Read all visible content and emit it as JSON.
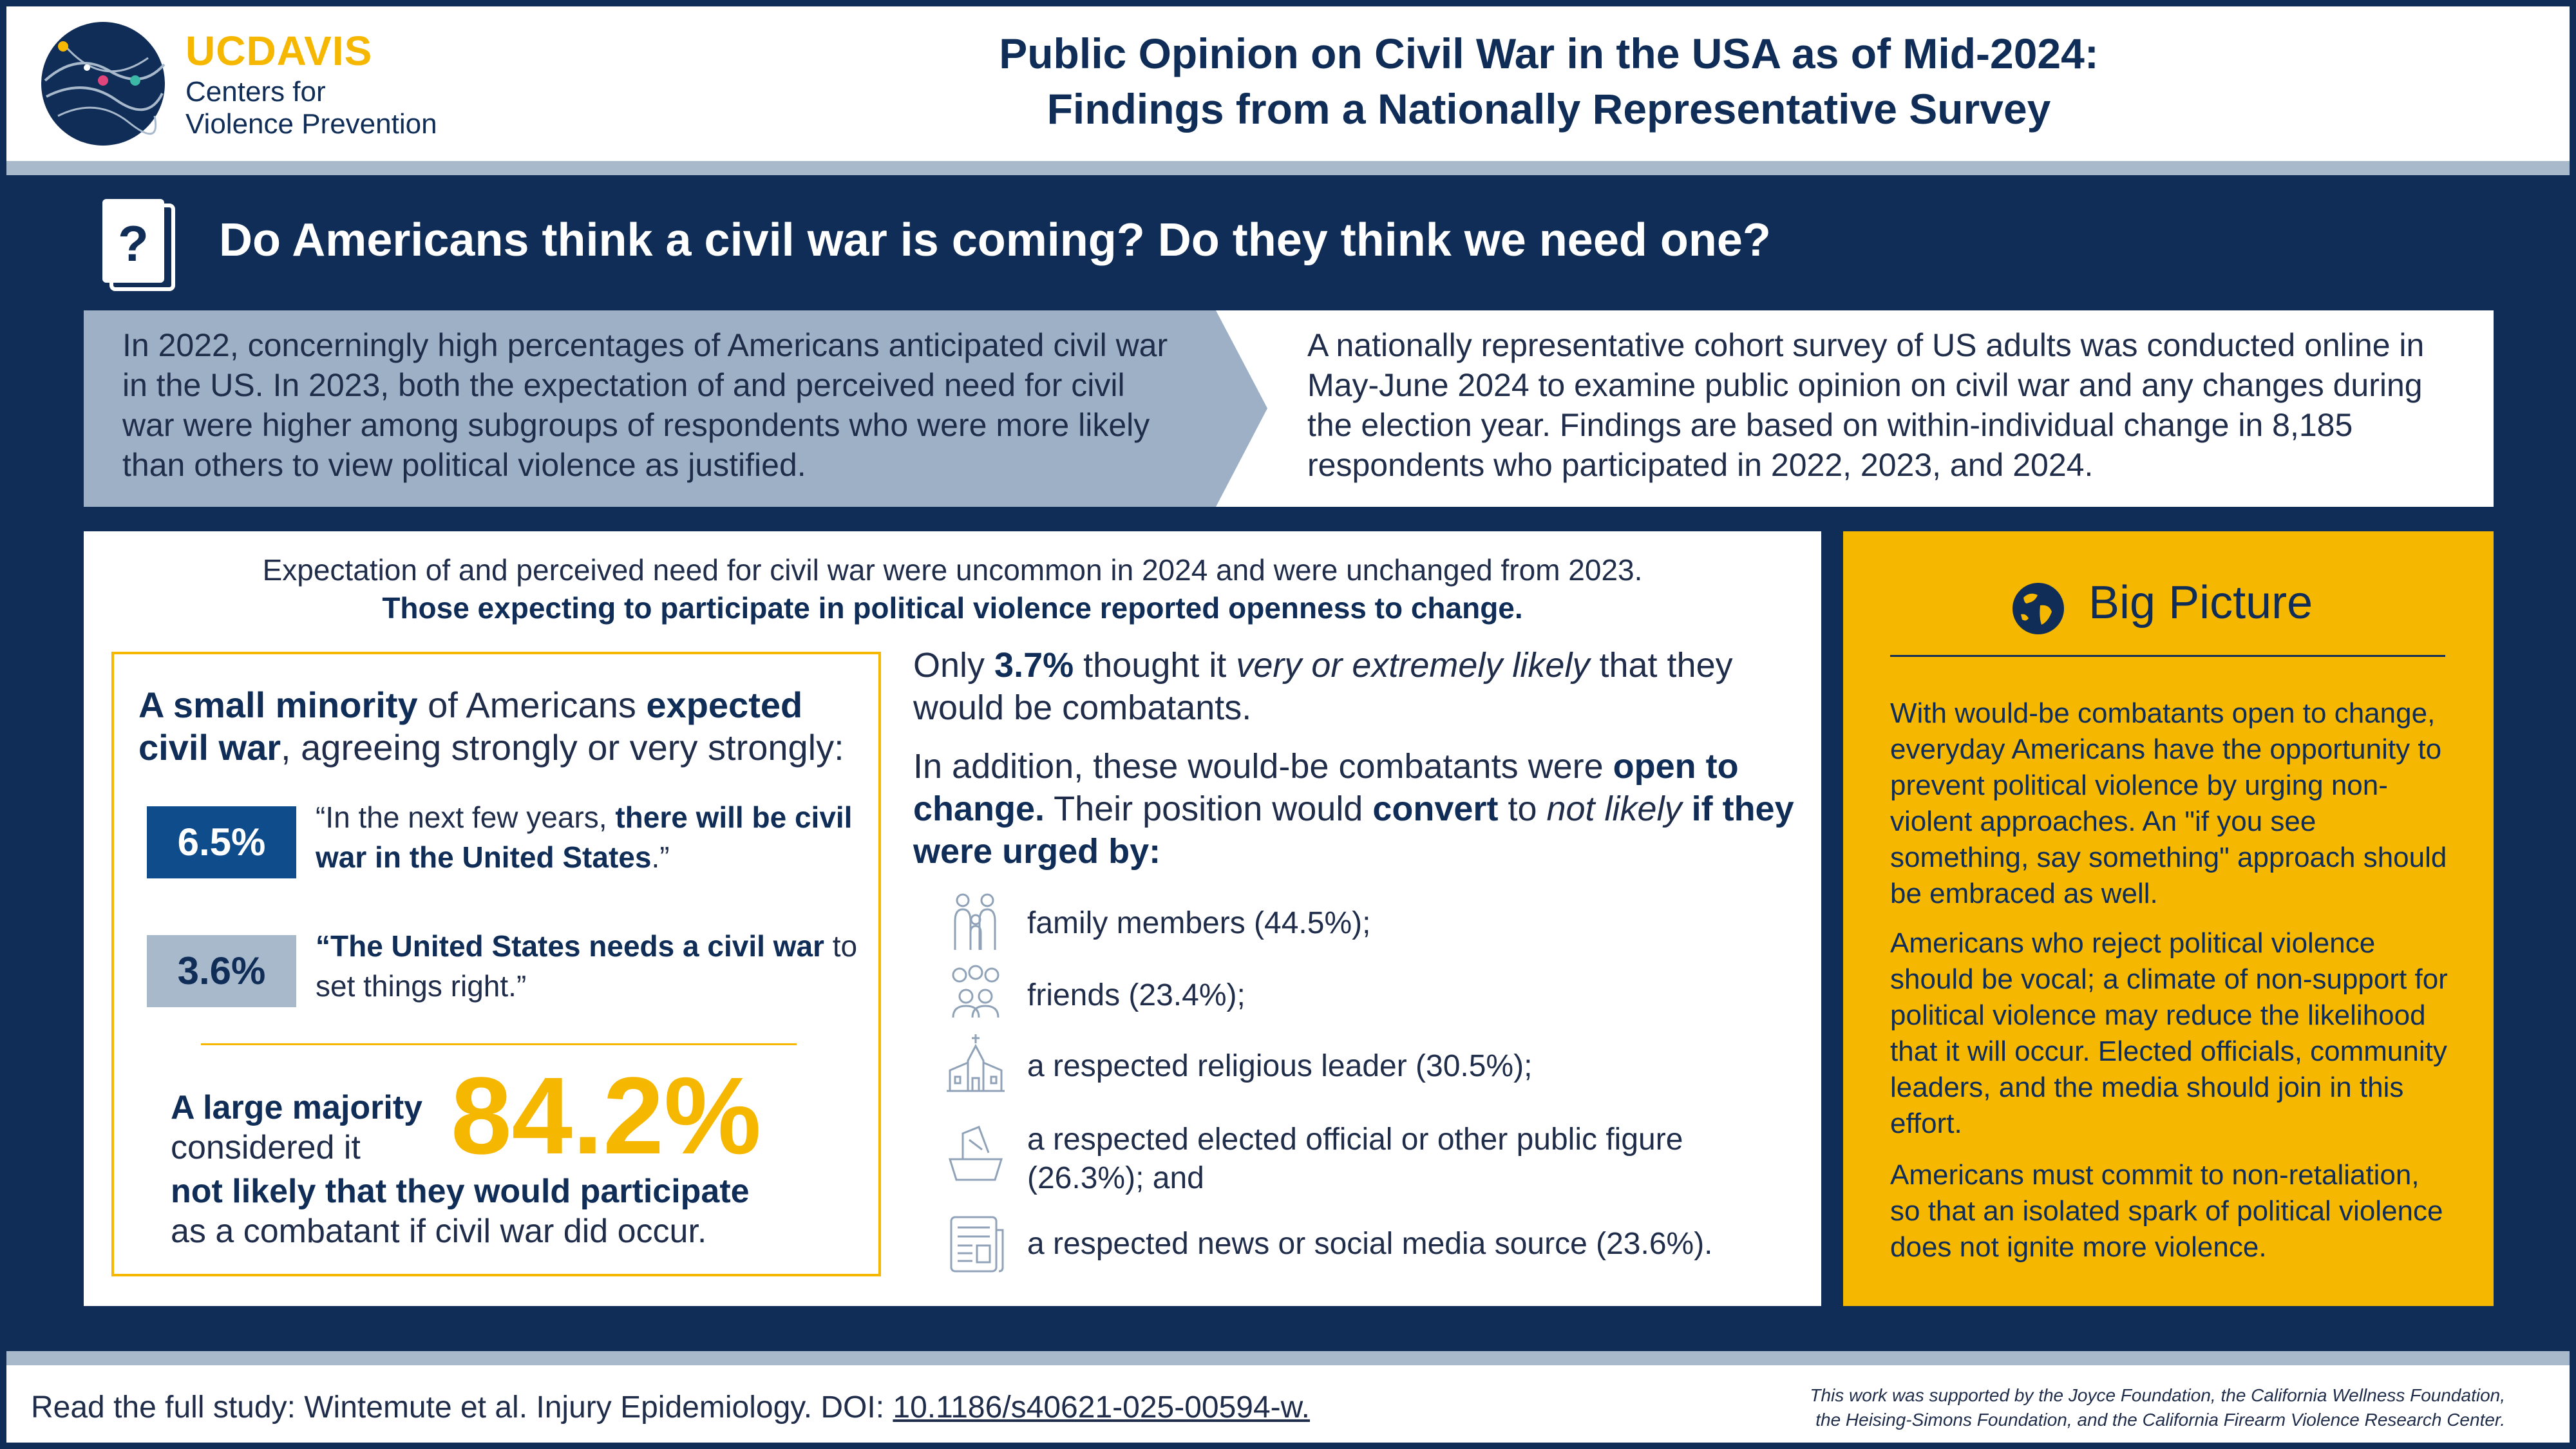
{
  "logo": {
    "uc": "UC",
    "davis": "DAVIS",
    "line1": "Centers for",
    "line2": "Violence Prevention"
  },
  "title": {
    "line1": "Public Opinion on Civil War in the USA as of Mid-2024:",
    "line2": "Findings from a Nationally Representative Survey"
  },
  "question": "Do Americans think a civil war is coming? Do they think we need one?",
  "intro": {
    "left": "In 2022, concerningly high percentages of Americans anticipated civil war in the US. In 2023, both the expectation of and perceived need for civil war were higher among subgroups of respondents who were more likely than others to view political violence as justified.",
    "right": "A nationally representative cohort survey of US adults was conducted online in May-June 2024 to examine public opinion on civil war and any changes during the election year. Findings are based on within-individual change in 8,185 respondents who participated in 2022, 2023, and 2024."
  },
  "panel": {
    "head1": "Expectation of and perceived need for civil war were uncommon in 2024 and were unchanged from 2023.",
    "head2": "Those expecting to participate in political violence reported openness to change."
  },
  "minority": {
    "a": "A small minority",
    "b": " of Americans ",
    "c": "expected civil war",
    "d": ", agreeing strongly or very strongly:"
  },
  "stat1": {
    "value": "6.5%",
    "q_open": "“In the next few years, ",
    "q_bold": "there will be civil war in the United States",
    "q_close": ".”"
  },
  "stat2": {
    "value": "3.6%",
    "q_bold1": "“The United States needs a civil war",
    "q_rest": " to set things right.”"
  },
  "majority": {
    "line1": "A large majority",
    "line2": "considered it",
    "value": "84.2%",
    "line3": "not likely that they would participate",
    "line4": "as a combatant if civil war did occur."
  },
  "combatants": {
    "p1a": "Only ",
    "p1b": "3.7%",
    "p1c": " thought it ",
    "p1d": "very or extremely likely",
    "p1e": " that they would be combatants.",
    "p2a": "In addition, these would-be combatants were ",
    "p2b": "open to change.",
    "p2c": " Their position would ",
    "p2d": "convert",
    "p2e": " to ",
    "p2f": "not likely",
    "p2g": " ",
    "p2h": "if they were urged by:"
  },
  "urged_by": [
    {
      "label": "family members (44.5%);",
      "icon": "family-icon"
    },
    {
      "label": "friends (23.4%);",
      "icon": "friends-icon"
    },
    {
      "label": "a respected religious leader (30.5%);",
      "icon": "church-icon"
    },
    {
      "label": "a respected elected official or other public figure (26.3%); and",
      "icon": "ballot-icon"
    },
    {
      "label": "a respected news or social media source (23.6%).",
      "icon": "newspaper-icon"
    }
  ],
  "big_picture": {
    "title": "Big Picture",
    "p1": "With would-be combatants open to change, everyday Americans have the opportunity to prevent political violence by urging non-violent approaches. An \"if you see something, say something\" approach should be embraced as well.",
    "p2": "Americans who reject political violence should be vocal; a climate of non-support for political violence may reduce the likelihood that it will occur. Elected officials, community leaders, and the media should join in this effort.",
    "p3": "Americans must commit to non-retaliation, so that an isolated spark of political violence does not ignite more violence."
  },
  "footer": {
    "read": "Read the full study: Wintemute et al. Injury Epidemiology. DOI: ",
    "doi": "10.1186/s40621-025-00594-w.",
    "support1": "This work was supported by the Joyce Foundation, the California Wellness Foundation,",
    "support2": "the Heising-Simons Foundation, and the California Firearm Violence Research Center."
  },
  "colors": {
    "navy": "#0f2d57",
    "gold": "#f5b700",
    "slate": "#9eb0c6",
    "blue": "#0f4c8c"
  }
}
